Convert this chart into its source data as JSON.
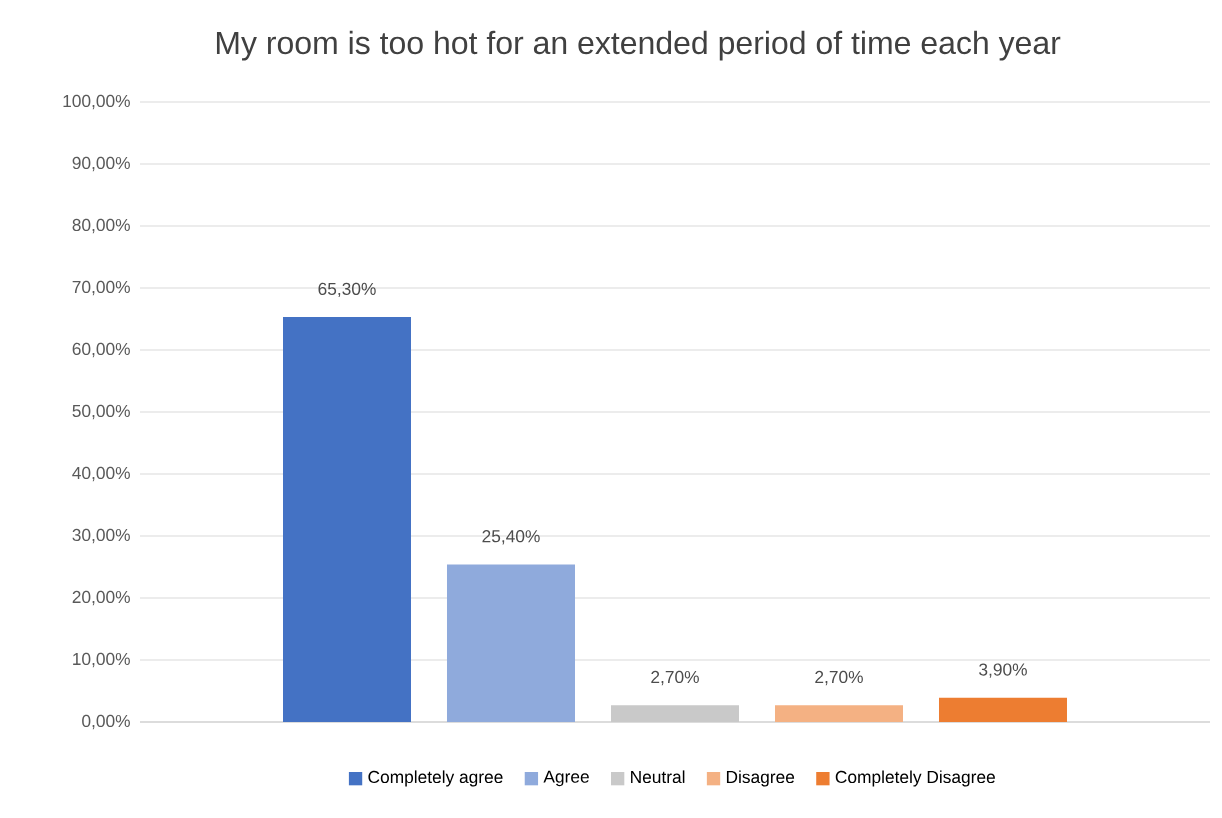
{
  "chart_data": {
    "type": "bar",
    "title": "My room is too hot for an extended period of time each year",
    "categories": [
      null
    ],
    "series": [
      {
        "name": "Completely agree",
        "color": "#4472c4",
        "values": [
          65.3
        ],
        "value_labels": [
          "65,30%"
        ]
      },
      {
        "name": "Agree",
        "color": "#8faadc",
        "values": [
          25.4
        ],
        "value_labels": [
          "25,40%"
        ]
      },
      {
        "name": "Neutral",
        "color": "#c9c9c9",
        "values": [
          2.7
        ],
        "value_labels": [
          "2,70%"
        ]
      },
      {
        "name": "Disagree",
        "color": "#f4b183",
        "values": [
          2.7
        ],
        "value_labels": [
          "2,70%"
        ]
      },
      {
        "name": "Completely Disagree",
        "color": "#ed7d31",
        "values": [
          3.9
        ],
        "value_labels": [
          "3,90%"
        ]
      }
    ],
    "ylim": [
      0,
      100
    ],
    "yticks": [
      {
        "value": 0,
        "label": "0,00%"
      },
      {
        "value": 10,
        "label": "10,00%"
      },
      {
        "value": 20,
        "label": "20,00%"
      },
      {
        "value": 30,
        "label": "30,00%"
      },
      {
        "value": 40,
        "label": "40,00%"
      },
      {
        "value": 50,
        "label": "50,00%"
      },
      {
        "value": 60,
        "label": "60,00%"
      },
      {
        "value": 70,
        "label": "70,00%"
      },
      {
        "value": 80,
        "label": "80,00%"
      },
      {
        "value": 90,
        "label": "90,00%"
      },
      {
        "value": 100,
        "label": "100,00%"
      }
    ],
    "grid": "y",
    "legend": "bottom"
  }
}
